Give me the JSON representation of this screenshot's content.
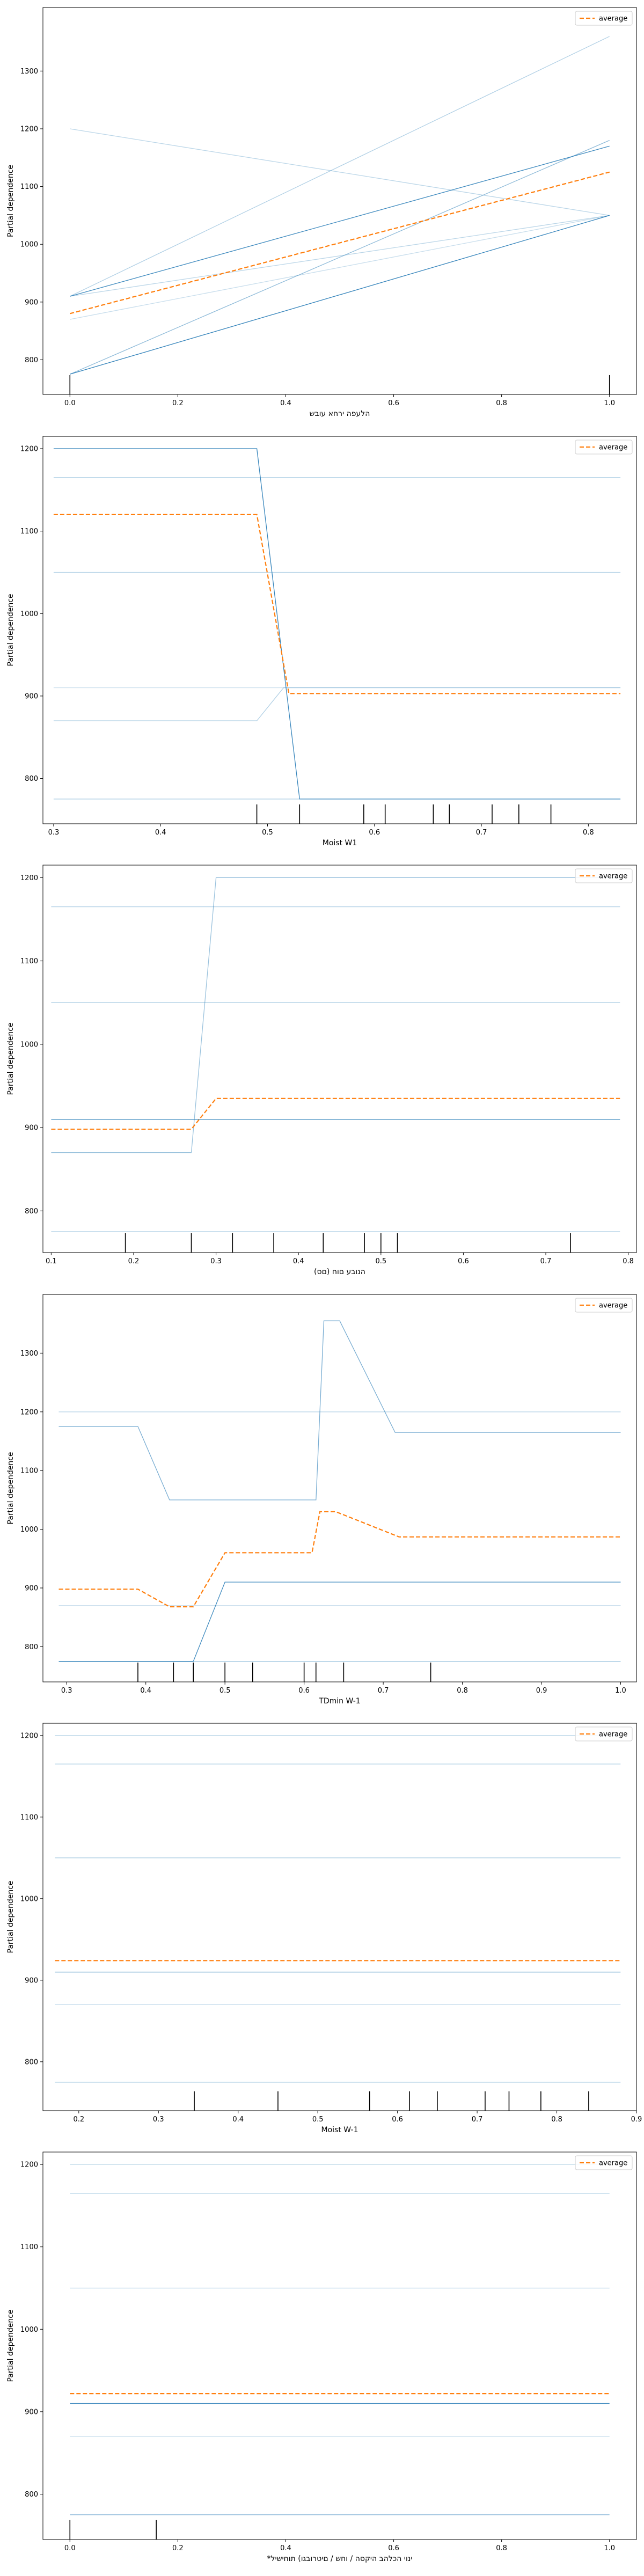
{
  "chart_data": [
    {
      "type": "line",
      "xlabel": "הלעפה ירחא עובש",
      "ylabel": "Partial dependence",
      "xlim": [
        -0.05,
        1.05
      ],
      "ylim": [
        740,
        1410
      ],
      "xticks": [
        {
          "v": 0,
          "t": "0.0"
        },
        {
          "v": 0.2,
          "t": "0.2"
        },
        {
          "v": 0.4,
          "t": "0.4"
        },
        {
          "v": 0.6,
          "t": "0.6"
        },
        {
          "v": 0.8,
          "t": "0.8"
        },
        {
          "v": 1.0,
          "t": "1.0"
        }
      ],
      "yticks": [
        800,
        900,
        1000,
        1100,
        1200,
        1300
      ],
      "legend": {
        "label": "average",
        "placement": "top-right"
      },
      "deciles": [
        0,
        1
      ],
      "ice": [
        {
          "x": [
            0,
            1
          ],
          "y": [
            1200,
            1050
          ],
          "strength": 0.3
        },
        {
          "x": [
            0,
            1
          ],
          "y": [
            910,
            1360
          ],
          "strength": 0.35
        },
        {
          "x": [
            0,
            1
          ],
          "y": [
            910,
            1170
          ],
          "strength": 0.85
        },
        {
          "x": [
            0,
            1
          ],
          "y": [
            910,
            1050
          ],
          "strength": 0.3
        },
        {
          "x": [
            0,
            1
          ],
          "y": [
            870,
            1050
          ],
          "strength": 0.25
        },
        {
          "x": [
            0,
            1
          ],
          "y": [
            775,
            1180
          ],
          "strength": 0.5
        },
        {
          "x": [
            0,
            1
          ],
          "y": [
            775,
            1050
          ],
          "strength": 0.9
        }
      ],
      "average": {
        "x": [
          0,
          1
        ],
        "y": [
          880,
          1125
        ]
      }
    },
    {
      "type": "line",
      "xlabel": "Moist W1",
      "ylabel": "Partial dependence",
      "xlim": [
        0.29,
        0.845
      ],
      "ylim": [
        745,
        1215
      ],
      "xticks": [
        {
          "v": 0.3,
          "t": "0.3"
        },
        {
          "v": 0.4,
          "t": "0.4"
        },
        {
          "v": 0.5,
          "t": "0.5"
        },
        {
          "v": 0.6,
          "t": "0.6"
        },
        {
          "v": 0.7,
          "t": "0.7"
        },
        {
          "v": 0.8,
          "t": "0.8"
        }
      ],
      "yticks": [
        800,
        900,
        1000,
        1100,
        1200
      ],
      "legend": {
        "label": "average",
        "placement": "top-right"
      },
      "deciles": [
        0.49,
        0.53,
        0.59,
        0.61,
        0.655,
        0.67,
        0.71,
        0.735,
        0.765
      ],
      "ice": [
        {
          "x": [
            0.3,
            0.49,
            0.53,
            0.83
          ],
          "y": [
            1200,
            1200,
            775,
            775
          ],
          "strength": 0.9
        },
        {
          "x": [
            0.3,
            0.83
          ],
          "y": [
            1165,
            1165
          ],
          "strength": 0.35
        },
        {
          "x": [
            0.3,
            0.83
          ],
          "y": [
            1050,
            1050
          ],
          "strength": 0.35
        },
        {
          "x": [
            0.3,
            0.49,
            0.515,
            0.83
          ],
          "y": [
            870,
            870,
            910,
            910
          ],
          "strength": 0.35
        },
        {
          "x": [
            0.3,
            0.83
          ],
          "y": [
            910,
            910
          ],
          "strength": 0.25
        },
        {
          "x": [
            0.3,
            0.83
          ],
          "y": [
            775,
            775
          ],
          "strength": 0.4
        }
      ],
      "average": {
        "x": [
          0.3,
          0.49,
          0.52,
          0.83
        ],
        "y": [
          1120,
          1120,
          903,
          903
        ]
      }
    },
    {
      "type": "line",
      "xlabel": "(םס) הנובע םוח",
      "ylabel": "Partial dependence",
      "xlim": [
        0.09,
        0.81
      ],
      "ylim": [
        750,
        1215
      ],
      "xticks": [
        {
          "v": 0.1,
          "t": "0.1"
        },
        {
          "v": 0.2,
          "t": "0.2"
        },
        {
          "v": 0.3,
          "t": "0.3"
        },
        {
          "v": 0.4,
          "t": "0.4"
        },
        {
          "v": 0.5,
          "t": "0.5"
        },
        {
          "v": 0.6,
          "t": "0.6"
        },
        {
          "v": 0.7,
          "t": "0.7"
        },
        {
          "v": 0.8,
          "t": "0.8"
        }
      ],
      "yticks": [
        800,
        900,
        1000,
        1100,
        1200
      ],
      "legend": {
        "label": "average",
        "placement": "top-right"
      },
      "deciles": [
        0.19,
        0.27,
        0.32,
        0.37,
        0.43,
        0.48,
        0.5,
        0.52,
        0.73
      ],
      "ice": [
        {
          "x": [
            0.1,
            0.27,
            0.3,
            0.79
          ],
          "y": [
            870,
            870,
            1200,
            1200
          ],
          "strength": 0.45
        },
        {
          "x": [
            0.1,
            0.79
          ],
          "y": [
            1165,
            1165
          ],
          "strength": 0.35
        },
        {
          "x": [
            0.1,
            0.79
          ],
          "y": [
            1050,
            1050
          ],
          "strength": 0.35
        },
        {
          "x": [
            0.1,
            0.79
          ],
          "y": [
            910,
            910
          ],
          "strength": 0.85
        },
        {
          "x": [
            0.1,
            0.79
          ],
          "y": [
            775,
            775
          ],
          "strength": 0.4
        }
      ],
      "average": {
        "x": [
          0.1,
          0.27,
          0.3,
          0.79
        ],
        "y": [
          898,
          898,
          935,
          935
        ]
      }
    },
    {
      "type": "line",
      "xlabel": "TDmin W-1",
      "ylabel": "Partial dependence",
      "xlim": [
        0.27,
        1.02
      ],
      "ylim": [
        740,
        1400
      ],
      "xticks": [
        {
          "v": 0.3,
          "t": "0.3"
        },
        {
          "v": 0.4,
          "t": "0.4"
        },
        {
          "v": 0.5,
          "t": "0.5"
        },
        {
          "v": 0.6,
          "t": "0.6"
        },
        {
          "v": 0.7,
          "t": "0.7"
        },
        {
          "v": 0.8,
          "t": "0.8"
        },
        {
          "v": 0.9,
          "t": "0.9"
        },
        {
          "v": 1.0,
          "t": "1.0"
        }
      ],
      "yticks": [
        800,
        900,
        1000,
        1100,
        1200,
        1300
      ],
      "legend": {
        "label": "average",
        "placement": "top-right"
      },
      "deciles": [
        0.39,
        0.435,
        0.46,
        0.5,
        0.535,
        0.6,
        0.615,
        0.65,
        0.76
      ],
      "ice": [
        {
          "x": [
            0.29,
            0.39,
            0.43,
            0.615,
            0.625,
            0.645,
            0.715,
            1.0
          ],
          "y": [
            1175,
            1175,
            1050,
            1050,
            1355,
            1355,
            1165,
            1165
          ],
          "strength": 0.6
        },
        {
          "x": [
            0.29,
            1.0
          ],
          "y": [
            1200,
            1200
          ],
          "strength": 0.3
        },
        {
          "x": [
            0.29,
            0.46,
            0.5,
            1.0
          ],
          "y": [
            775,
            775,
            910,
            910
          ],
          "strength": 0.85
        },
        {
          "x": [
            0.29,
            1.0
          ],
          "y": [
            870,
            870
          ],
          "strength": 0.25
        },
        {
          "x": [
            0.29,
            1.0
          ],
          "y": [
            775,
            775
          ],
          "strength": 0.4
        }
      ],
      "average": {
        "x": [
          0.29,
          0.39,
          0.43,
          0.46,
          0.5,
          0.61,
          0.62,
          0.64,
          0.72,
          1.0
        ],
        "y": [
          898,
          898,
          868,
          868,
          960,
          960,
          1030,
          1030,
          987,
          987
        ]
      }
    },
    {
      "type": "line",
      "xlabel": "Moist W-1",
      "ylabel": "Partial dependence",
      "xlim": [
        0.155,
        0.9
      ],
      "ylim": [
        740,
        1215
      ],
      "xticks": [
        {
          "v": 0.2,
          "t": "0.2"
        },
        {
          "v": 0.3,
          "t": "0.3"
        },
        {
          "v": 0.4,
          "t": "0.4"
        },
        {
          "v": 0.5,
          "t": "0.5"
        },
        {
          "v": 0.6,
          "t": "0.6"
        },
        {
          "v": 0.7,
          "t": "0.7"
        },
        {
          "v": 0.8,
          "t": "0.8"
        },
        {
          "v": 0.9,
          "t": "0.9"
        }
      ],
      "yticks": [
        800,
        900,
        1000,
        1100,
        1200
      ],
      "legend": {
        "label": "average",
        "placement": "top-right"
      },
      "deciles": [
        0.345,
        0.45,
        0.565,
        0.615,
        0.65,
        0.71,
        0.74,
        0.78,
        0.84
      ],
      "ice": [
        {
          "x": [
            0.17,
            0.88
          ],
          "y": [
            1200,
            1200
          ],
          "strength": 0.3
        },
        {
          "x": [
            0.17,
            0.88
          ],
          "y": [
            1165,
            1165
          ],
          "strength": 0.35
        },
        {
          "x": [
            0.17,
            0.88
          ],
          "y": [
            1050,
            1050
          ],
          "strength": 0.35
        },
        {
          "x": [
            0.17,
            0.88
          ],
          "y": [
            910,
            910
          ],
          "strength": 0.85
        },
        {
          "x": [
            0.17,
            0.88
          ],
          "y": [
            870,
            870
          ],
          "strength": 0.25
        },
        {
          "x": [
            0.17,
            0.88
          ],
          "y": [
            775,
            775
          ],
          "strength": 0.4
        }
      ],
      "average": {
        "x": [
          0.17,
          0.88
        ],
        "y": [
          924,
          924
        ]
      }
    },
    {
      "type": "line",
      "xlabel": "*ינוי הכלהב היקסה / וחש / םיטרובגו) תוחישיל",
      "ylabel": "Partial dependence",
      "xlim": [
        -0.05,
        1.05
      ],
      "ylim": [
        745,
        1215
      ],
      "xticks": [
        {
          "v": 0,
          "t": "0.0"
        },
        {
          "v": 0.2,
          "t": "0.2"
        },
        {
          "v": 0.4,
          "t": "0.4"
        },
        {
          "v": 0.6,
          "t": "0.6"
        },
        {
          "v": 0.8,
          "t": "0.8"
        },
        {
          "v": 1.0,
          "t": "1.0"
        }
      ],
      "yticks": [
        800,
        900,
        1000,
        1100,
        1200
      ],
      "legend": {
        "label": "average",
        "placement": "top-right"
      },
      "deciles": [
        0,
        0.16
      ],
      "ice": [
        {
          "x": [
            0,
            1
          ],
          "y": [
            1200,
            1200
          ],
          "strength": 0.3
        },
        {
          "x": [
            0,
            1
          ],
          "y": [
            1165,
            1165
          ],
          "strength": 0.35
        },
        {
          "x": [
            0,
            1
          ],
          "y": [
            1050,
            1050
          ],
          "strength": 0.35
        },
        {
          "x": [
            0,
            1
          ],
          "y": [
            910,
            910
          ],
          "strength": 0.85
        },
        {
          "x": [
            0,
            1
          ],
          "y": [
            870,
            870
          ],
          "strength": 0.25
        },
        {
          "x": [
            0,
            1
          ],
          "y": [
            775,
            775
          ],
          "strength": 0.55
        }
      ],
      "average": {
        "x": [
          0,
          1
        ],
        "y": [
          922,
          922
        ]
      }
    }
  ],
  "style": {
    "ice_color": "#1f77b4",
    "average_color": "#ff7f0e",
    "axis_color": "#000000",
    "background": "#ffffff"
  }
}
